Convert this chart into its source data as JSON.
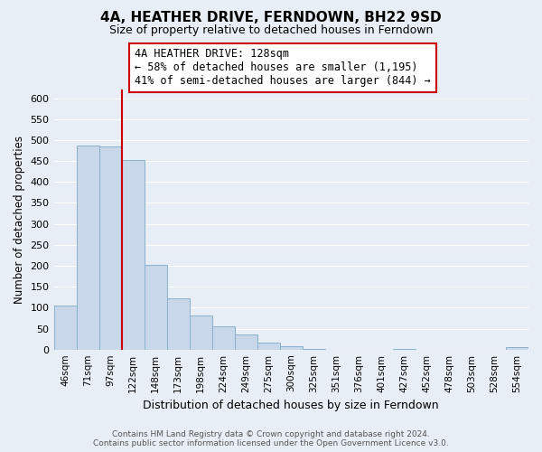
{
  "title": "4A, HEATHER DRIVE, FERNDOWN, BH22 9SD",
  "subtitle": "Size of property relative to detached houses in Ferndown",
  "xlabel": "Distribution of detached houses by size in Ferndown",
  "ylabel": "Number of detached properties",
  "bar_labels": [
    "46sqm",
    "71sqm",
    "97sqm",
    "122sqm",
    "148sqm",
    "173sqm",
    "198sqm",
    "224sqm",
    "249sqm",
    "275sqm",
    "300sqm",
    "325sqm",
    "351sqm",
    "376sqm",
    "401sqm",
    "427sqm",
    "452sqm",
    "478sqm",
    "503sqm",
    "528sqm",
    "554sqm"
  ],
  "bar_values": [
    105,
    487,
    485,
    452,
    202,
    122,
    82,
    56,
    35,
    17,
    8,
    2,
    0,
    0,
    0,
    2,
    0,
    0,
    0,
    0,
    5
  ],
  "bar_color": "#c8d8ea",
  "bar_edge_color": "#8ab0cc",
  "vline_x": 2.5,
  "vline_color": "#cc0000",
  "annotation_line1": "4A HEATHER DRIVE: 128sqm",
  "annotation_line2": "← 58% of detached houses are smaller (1,195)",
  "annotation_line3": "41% of semi-detached houses are larger (844) →",
  "annotation_box_color": "#ffffff",
  "annotation_box_edge": "#cc0000",
  "ylim": [
    0,
    620
  ],
  "yticks": [
    0,
    50,
    100,
    150,
    200,
    250,
    300,
    350,
    400,
    450,
    500,
    550,
    600
  ],
  "footer": "Contains HM Land Registry data © Crown copyright and database right 2024.\nContains public sector information licensed under the Open Government Licence v3.0.",
  "bg_color": "#e8eef5",
  "plot_bg_color": "#e8eef5",
  "grid_color": "#ffffff",
  "title_fontsize": 11,
  "subtitle_fontsize": 9
}
